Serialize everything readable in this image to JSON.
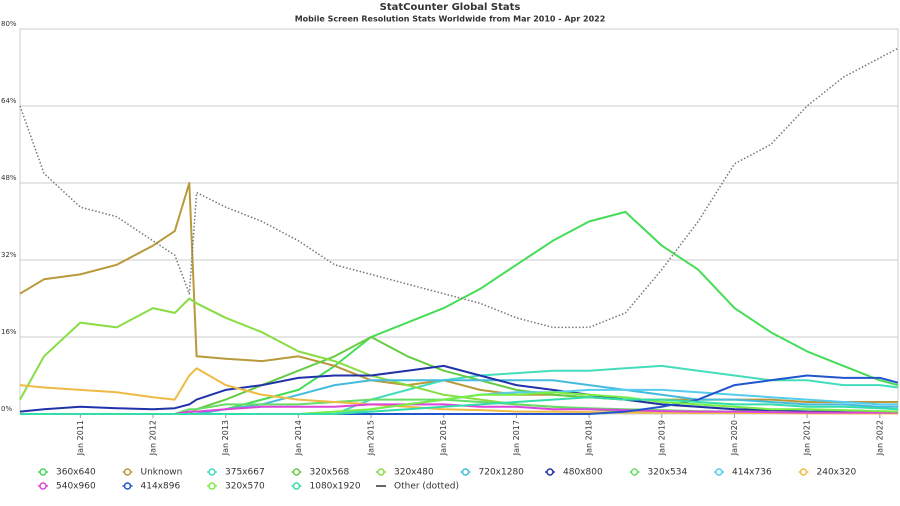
{
  "chart_data": {
    "type": "line",
    "title": "StatCounter Global Stats",
    "subtitle": "Mobile Screen Resolution Stats Worldwide from Mar 2010 - Apr 2022",
    "x": [
      2010.17,
      2010.5,
      2011,
      2011.5,
      2012,
      2012.3,
      2012.5,
      2012.6,
      2013,
      2013.5,
      2014,
      2014.5,
      2015,
      2015.5,
      2016,
      2016.5,
      2017,
      2017.5,
      2018,
      2018.5,
      2019,
      2019.5,
      2020,
      2020.5,
      2021,
      2021.5,
      2022,
      2022.25
    ],
    "xlim": [
      2010.17,
      2022.25
    ],
    "xticks": [
      {
        "value": 2011,
        "label": "Jan 2011"
      },
      {
        "value": 2012,
        "label": "Jan 2012"
      },
      {
        "value": 2013,
        "label": "Jan 2013"
      },
      {
        "value": 2014,
        "label": "Jan 2014"
      },
      {
        "value": 2015,
        "label": "Jan 2015"
      },
      {
        "value": 2016,
        "label": "Jan 2016"
      },
      {
        "value": 2017,
        "label": "Jan 2017"
      },
      {
        "value": 2018,
        "label": "Jan 2018"
      },
      {
        "value": 2019,
        "label": "Jan 2019"
      },
      {
        "value": 2020,
        "label": "Jan 2020"
      },
      {
        "value": 2021,
        "label": "Jan 2021"
      },
      {
        "value": 2022,
        "label": "Jan 2022"
      }
    ],
    "ylim": [
      0,
      80
    ],
    "yticks": [
      {
        "value": 0,
        "label": "0%"
      },
      {
        "value": 16,
        "label": "16%"
      },
      {
        "value": 32,
        "label": "32%"
      },
      {
        "value": 48,
        "label": "48%"
      },
      {
        "value": 64,
        "label": "64%"
      },
      {
        "value": 80,
        "label": "80%"
      }
    ],
    "grid": true,
    "legend": "bottom",
    "series": [
      {
        "name": "360x640",
        "color": "#44dd55",
        "values": [
          0,
          0,
          0,
          0,
          0,
          0,
          0,
          0,
          1,
          3,
          5,
          10,
          16,
          19,
          22,
          26,
          31,
          36,
          40,
          42,
          35,
          30,
          22,
          17,
          13,
          10,
          7,
          6
        ]
      },
      {
        "name": "Unknown",
        "color": "#b89a3a",
        "values": [
          25,
          28,
          29,
          31,
          35,
          38,
          48,
          12,
          11.5,
          11,
          12,
          10,
          7,
          6,
          7,
          5,
          4,
          4,
          3.5,
          3,
          3,
          3,
          3,
          3,
          2.5,
          2.5,
          2.5,
          2.5
        ]
      },
      {
        "name": "375x667",
        "color": "#44ddbb",
        "values": [
          0,
          0,
          0,
          0,
          0,
          0,
          0,
          0,
          0,
          0,
          0,
          0,
          3,
          5,
          7,
          8,
          8.5,
          9,
          9,
          9.5,
          10,
          9,
          8,
          7,
          7,
          6,
          6,
          5.5
        ]
      },
      {
        "name": "320x568",
        "color": "#66cc44",
        "values": [
          0,
          0,
          0,
          0,
          0,
          0,
          0,
          1,
          3,
          6,
          9,
          12,
          16,
          12,
          9,
          7,
          5,
          4,
          3.5,
          3,
          2,
          1.5,
          1,
          0.8,
          0.5,
          0.5,
          0.5,
          0.5
        ]
      },
      {
        "name": "320x480",
        "color": "#88dd44",
        "values": [
          3,
          12,
          19,
          18,
          22,
          21,
          24,
          23,
          20,
          17,
          13,
          11,
          8,
          6,
          4,
          3,
          2,
          1.5,
          1,
          0.5,
          0.5,
          0.5,
          0.5,
          0.5,
          0.5,
          0.5,
          0.5,
          0.5
        ]
      },
      {
        "name": "720x1280",
        "color": "#44bbdd",
        "values": [
          0,
          0,
          0,
          0,
          0,
          0,
          0,
          0,
          1,
          2,
          4,
          6,
          7,
          7,
          7,
          7,
          7,
          7,
          6,
          5,
          4,
          3,
          3,
          2.5,
          2,
          2,
          1.5,
          1.5
        ]
      },
      {
        "name": "480x800",
        "color": "#2233aa",
        "values": [
          0.5,
          1,
          1.5,
          1.2,
          1,
          1.2,
          2,
          3,
          5,
          6,
          7.5,
          8,
          8,
          9,
          10,
          8,
          6,
          5,
          4,
          3,
          2,
          1.5,
          1,
          0.8,
          0.5,
          0.4,
          0.3,
          0.3
        ]
      },
      {
        "name": "320x534",
        "color": "#66dd66",
        "values": [
          0,
          0,
          0,
          0,
          0,
          0,
          1,
          1,
          2,
          2,
          2,
          2.5,
          3,
          3,
          3,
          2.5,
          2,
          1.5,
          1.2,
          1,
          0.8,
          0.6,
          0.5,
          0.4,
          0.3,
          0.3,
          0.2,
          0.2
        ]
      },
      {
        "name": "414x736",
        "color": "#55ccee",
        "values": [
          0,
          0,
          0,
          0,
          0,
          0,
          0,
          0,
          0,
          0,
          0,
          0,
          1,
          2,
          3,
          4,
          4.5,
          4.5,
          5,
          5,
          5,
          4.5,
          4,
          3.5,
          3,
          2.5,
          2,
          2
        ]
      },
      {
        "name": "240x320",
        "color": "#eebb44",
        "values": [
          6,
          5.5,
          5,
          4.5,
          3.5,
          3,
          8,
          9.5,
          6,
          4,
          3,
          2.5,
          2,
          1.5,
          1,
          0.8,
          0.5,
          0.5,
          0.4,
          0.3,
          0.3,
          0.2,
          0.2,
          0.2,
          0.1,
          0.1,
          0.1,
          0.1
        ]
      },
      {
        "name": "540x960",
        "color": "#dd44dd",
        "values": [
          0,
          0,
          0,
          0,
          0,
          0,
          0.5,
          0.5,
          1,
          1.5,
          1.5,
          1.5,
          2,
          2,
          2,
          1.5,
          1.5,
          1,
          1,
          0.8,
          0.6,
          0.5,
          0.5,
          0.4,
          0.3,
          0.3,
          0.3,
          0.3
        ]
      },
      {
        "name": "414x896",
        "color": "#2255cc",
        "values": [
          0,
          0,
          0,
          0,
          0,
          0,
          0,
          0,
          0,
          0,
          0,
          0,
          0,
          0,
          0,
          0,
          0,
          0,
          0,
          0.5,
          1.5,
          3,
          6,
          7,
          8,
          7.5,
          7.5,
          6.5
        ]
      },
      {
        "name": "320x570",
        "color": "#77ee44",
        "values": [
          0,
          0,
          0,
          0,
          0,
          0,
          0,
          0,
          0,
          0,
          0,
          0.5,
          1,
          2,
          3,
          4,
          4,
          4.5,
          4,
          3.5,
          2.5,
          2,
          1.5,
          1,
          1,
          0.8,
          0.6,
          0.5
        ]
      },
      {
        "name": "1080x1920",
        "color": "#33ddaa",
        "values": [
          0,
          0,
          0,
          0,
          0,
          0,
          0,
          0,
          0,
          0,
          0,
          0,
          0.5,
          1,
          1.5,
          2,
          2.5,
          3,
          3.5,
          3,
          3,
          2.5,
          2,
          2,
          1.5,
          1.5,
          1.2,
          1
        ]
      },
      {
        "name": "Other (dotted)",
        "color": "#777777",
        "style": "dotted",
        "values": [
          64,
          50,
          43,
          41,
          36,
          33,
          25,
          46,
          43,
          40,
          36,
          31,
          29,
          27,
          25,
          23,
          20,
          18,
          18,
          21,
          30,
          40,
          52,
          56,
          64,
          70,
          74,
          76
        ]
      }
    ]
  }
}
